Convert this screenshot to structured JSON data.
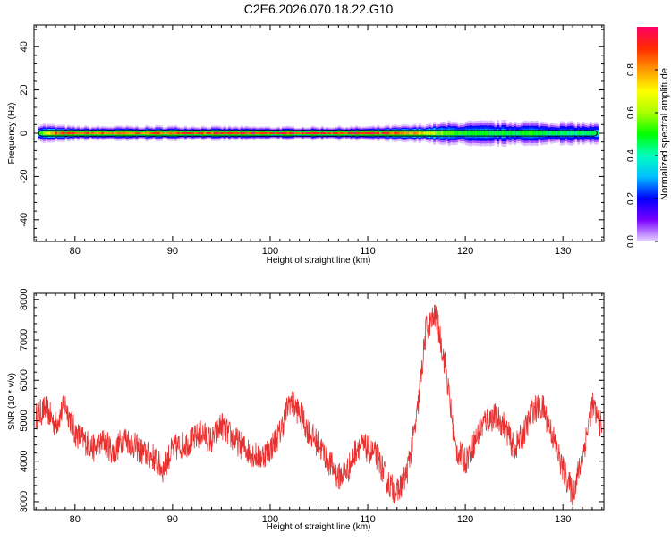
{
  "title": "C2E6.2026.070.18.22.G10",
  "chart_data": [
    {
      "type": "heatmap",
      "xlabel": "Height of straight line (km)",
      "ylabel": "Frequency (Hz)",
      "xlim": [
        75.8,
        134.2
      ],
      "ylim": [
        -50,
        50
      ],
      "x_ticks": [
        80,
        90,
        100,
        110,
        120,
        130
      ],
      "y_ticks": [
        -40,
        -20,
        0,
        20,
        40
      ],
      "band_start_km": 76.2,
      "band_end_km": 133.6,
      "band_center_hz": 0,
      "band_halfwidth_profile_hz": [
        [
          76.5,
          2.2
        ],
        [
          80,
          1.6
        ],
        [
          90,
          1.7
        ],
        [
          100,
          1.5
        ],
        [
          110,
          1.6
        ],
        [
          115,
          2.0
        ],
        [
          118,
          2.6
        ],
        [
          125,
          2.8
        ],
        [
          133,
          2.4
        ]
      ],
      "amplitude_profile": [
        [
          76.5,
          0.55
        ],
        [
          78,
          0.9
        ],
        [
          85,
          0.85
        ],
        [
          95,
          0.92
        ],
        [
          105,
          0.95
        ],
        [
          112,
          0.9
        ],
        [
          115,
          0.8
        ],
        [
          118,
          0.55
        ],
        [
          122,
          0.5
        ],
        [
          128,
          0.5
        ],
        [
          133,
          0.45
        ]
      ],
      "colorbar": {
        "label": "Normalized spectral amplitude",
        "ticks": [
          "0.0",
          "0.2",
          "0.4",
          "0.6",
          "0.8"
        ],
        "range": [
          0,
          1
        ]
      },
      "grid": false
    },
    {
      "type": "line",
      "xlabel": "Height of straight line (km)",
      "ylabel": "SNR (10 * v/v)",
      "xlim": [
        75.8,
        134.2
      ],
      "ylim": [
        2800,
        8150
      ],
      "x_ticks": [
        80,
        90,
        100,
        110,
        120,
        130
      ],
      "y_ticks": [
        3000,
        4000,
        5000,
        6000,
        7000,
        8000
      ],
      "color": "#e8302f",
      "series": [
        {
          "points": [
            [
              76,
              5100
            ],
            [
              77,
              5300
            ],
            [
              78,
              4900
            ],
            [
              79,
              5400
            ],
            [
              80,
              4700
            ],
            [
              81,
              4500
            ],
            [
              82,
              4300
            ],
            [
              83,
              4500
            ],
            [
              84,
              4200
            ],
            [
              85,
              4600
            ],
            [
              86,
              4400
            ],
            [
              87,
              4200
            ],
            [
              88,
              4100
            ],
            [
              89,
              3800
            ],
            [
              90,
              4300
            ],
            [
              91,
              4400
            ],
            [
              92,
              4500
            ],
            [
              93,
              4700
            ],
            [
              94,
              4500
            ],
            [
              95,
              4900
            ],
            [
              96,
              4600
            ],
            [
              97,
              4400
            ],
            [
              98,
              4200
            ],
            [
              99,
              4100
            ],
            [
              100,
              4300
            ],
            [
              101,
              4700
            ],
            [
              102,
              5500
            ],
            [
              103,
              5200
            ],
            [
              104,
              4700
            ],
            [
              105,
              4400
            ],
            [
              106,
              4000
            ],
            [
              107,
              3600
            ],
            [
              108,
              3800
            ],
            [
              109,
              4400
            ],
            [
              110,
              4300
            ],
            [
              111,
              4100
            ],
            [
              112,
              3500
            ],
            [
              113,
              3200
            ],
            [
              114,
              3700
            ],
            [
              115,
              5000
            ],
            [
              116,
              7300
            ],
            [
              117,
              7600
            ],
            [
              118,
              6300
            ],
            [
              119,
              4300
            ],
            [
              120,
              4000
            ],
            [
              121,
              4500
            ],
            [
              122,
              5000
            ],
            [
              123,
              5100
            ],
            [
              124,
              4900
            ],
            [
              125,
              4300
            ],
            [
              126,
              4700
            ],
            [
              127,
              5300
            ],
            [
              128,
              5300
            ],
            [
              129,
              4600
            ],
            [
              130,
              3800
            ],
            [
              131,
              3200
            ],
            [
              132,
              4100
            ],
            [
              133,
              5400
            ],
            [
              134,
              4800
            ]
          ]
        }
      ],
      "grid": false
    }
  ]
}
